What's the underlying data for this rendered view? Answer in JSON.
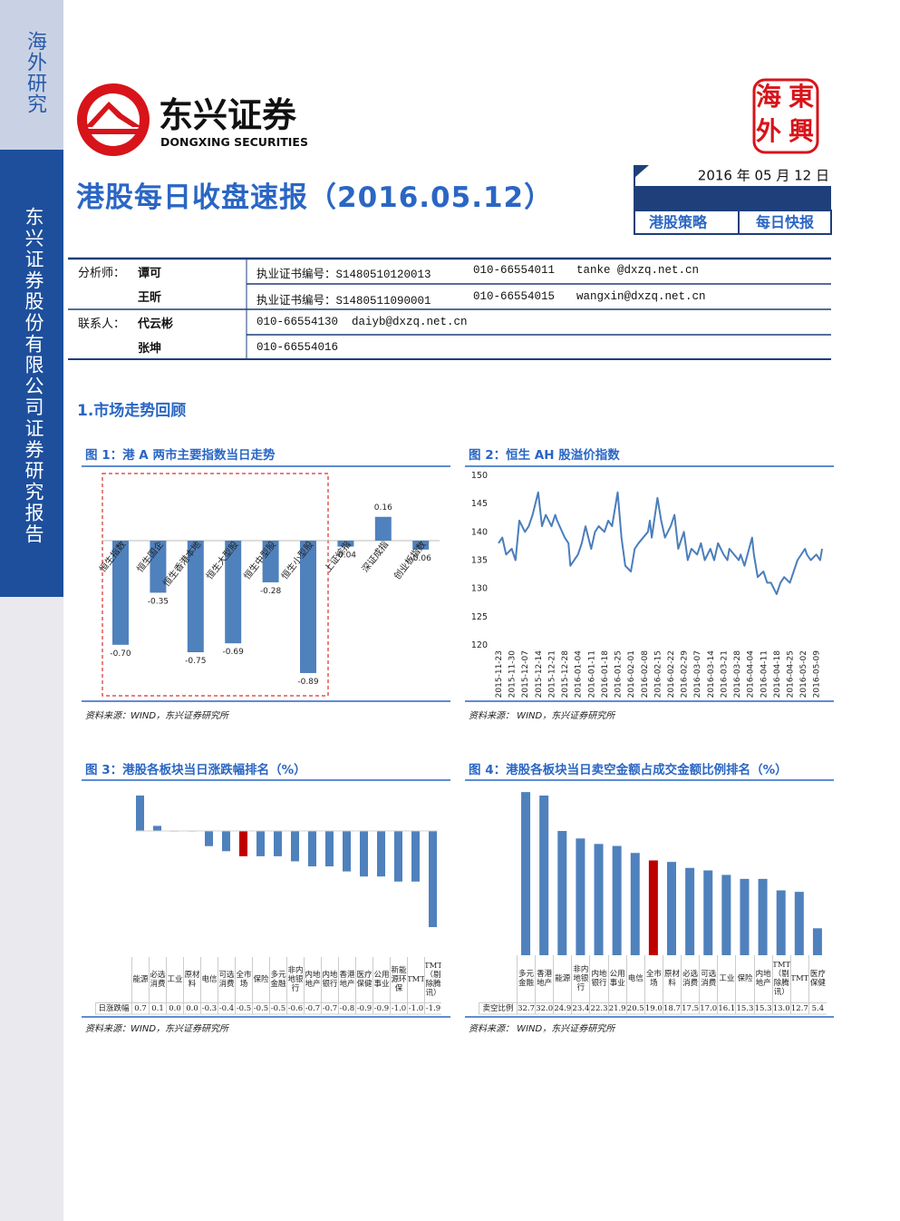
{
  "sidebar": {
    "tag": "海外研究",
    "company": "东兴证券股份有限公司证券研究报告"
  },
  "header": {
    "logo_cn": "东兴证券",
    "logo_en": "DONGXING SECURITIES",
    "stamp": [
      "海",
      "東",
      "外",
      "興"
    ],
    "title": "港股每日收盘速报（2016.05.12）",
    "date": "2016 年 05 月 12 日",
    "tags": [
      "港股策略",
      "每日快报"
    ]
  },
  "contacts": {
    "groups": [
      {
        "label": "分析师：",
        "people": [
          {
            "name": "谭可",
            "license": "执业证书编号：S1480510120013",
            "phone": "010-66554011",
            "email": "tanke @dxzq.net.cn"
          },
          {
            "name": "王昕",
            "license": "执业证书编号：S1480511090001",
            "phone": "010-66554015",
            "email": "wangxin@dxzq.net.cn"
          }
        ]
      },
      {
        "label": "联系人：",
        "people": [
          {
            "name": "代云彬",
            "phone": "010-66554130",
            "email": "daiyb@dxzq.net.cn"
          },
          {
            "name": "张坤",
            "phone": "010-66554016"
          }
        ]
      }
    ]
  },
  "section": "1.市场走势回顾",
  "chart_data": [
    {
      "type": "bar",
      "title": "图 1：港 A 两市主要指数当日走势",
      "categories": [
        "恒生指数",
        "恒生国企",
        "恒生香港本地",
        "恒生大型股",
        "恒生中型股",
        "恒生小型股",
        "上证综指",
        "深证成指",
        "创业板指数"
      ],
      "values": [
        -0.7,
        -0.35,
        -0.75,
        -0.69,
        -0.28,
        -0.89,
        -0.04,
        0.16,
        -0.06
      ],
      "value_labels": [
        "-0.70",
        "-0.35",
        "-0.75",
        "-0.69",
        "-0.28",
        "-0.89",
        "-0.04",
        "0.16",
        "-0.06"
      ],
      "color": "#4f81bd",
      "source": "资料来源：WIND，东兴证券研究所"
    },
    {
      "type": "line",
      "title": "图 2：恒生 AH 股溢价指数",
      "x": [
        "2015-11-23",
        "2015-11-25",
        "2015-11-27",
        "2015-11-30",
        "2015-12-02",
        "2015-12-04",
        "2015-12-07",
        "2015-12-09",
        "2015-12-11",
        "2015-12-14",
        "2015-12-16",
        "2015-12-18",
        "2015-12-21",
        "2015-12-23",
        "2015-12-24",
        "2015-12-28",
        "2015-12-30",
        "2015-12-31",
        "2016-01-04",
        "2016-01-06",
        "2016-01-08",
        "2016-01-11",
        "2016-01-13",
        "2016-01-15",
        "2016-01-18",
        "2016-01-20",
        "2016-01-22",
        "2016-01-25",
        "2016-01-27",
        "2016-01-29",
        "2016-02-01",
        "2016-02-03",
        "2016-02-05",
        "2016-02-10",
        "2016-02-11",
        "2016-02-12",
        "2016-02-15",
        "2016-02-17",
        "2016-02-19",
        "2016-02-22",
        "2016-02-24",
        "2016-02-26",
        "2016-02-29",
        "2016-03-02",
        "2016-03-04",
        "2016-03-07",
        "2016-03-09",
        "2016-03-11",
        "2016-03-14",
        "2016-03-16",
        "2016-03-18",
        "2016-03-21",
        "2016-03-23",
        "2016-03-24",
        "2016-03-29",
        "2016-03-30",
        "2016-04-01",
        "2016-04-05",
        "2016-04-06",
        "2016-04-08",
        "2016-04-11",
        "2016-04-13",
        "2016-04-15",
        "2016-04-18",
        "2016-04-20",
        "2016-04-22",
        "2016-04-25",
        "2016-04-27",
        "2016-04-29",
        "2016-05-03",
        "2016-05-04",
        "2016-05-06",
        "2016-05-09",
        "2016-05-11",
        "2016-05-12"
      ],
      "values": [
        138,
        139,
        136,
        137,
        135,
        142,
        140,
        141,
        143,
        147,
        141,
        143,
        141,
        143,
        142,
        139,
        138,
        134,
        136,
        138,
        141,
        137,
        140,
        141,
        140,
        142,
        141,
        147,
        139,
        134,
        133,
        137,
        138,
        140,
        142,
        139,
        146,
        142,
        139,
        141,
        143,
        137,
        140,
        135,
        137,
        136,
        138,
        135,
        137,
        135,
        138,
        136,
        135,
        137,
        135,
        136,
        134,
        139,
        136,
        132,
        133,
        131,
        131,
        129,
        131,
        132,
        131,
        133,
        135,
        137,
        136,
        135,
        136,
        135,
        137
      ],
      "color": "#4a7ebb",
      "xlim": [
        "2015-11-23",
        "2016-05-12"
      ],
      "xticks": [
        "2015-11-23",
        "2015-11-30",
        "2015-12-07",
        "2015-12-14",
        "2015-12-21",
        "2015-12-28",
        "2016-01-04",
        "2016-01-11",
        "2016-01-18",
        "2016-01-25",
        "2016-02-01",
        "2016-02-08",
        "2016-02-15",
        "2016-02-22",
        "2016-02-29",
        "2016-03-07",
        "2016-03-14",
        "2016-03-21",
        "2016-03-28",
        "2016-04-04",
        "2016-04-11",
        "2016-04-18",
        "2016-04-25",
        "2016-05-02",
        "2016-05-09"
      ],
      "ylim": [
        120,
        150
      ],
      "yticks": [
        120,
        125,
        130,
        135,
        140,
        145,
        150
      ],
      "source": "资料来源：  WIND，东兴证券研究所"
    },
    {
      "type": "bar",
      "title": "图 3：港股各板块当日涨跌幅排名（%）",
      "categories": [
        "能源",
        "必选消费",
        "工业",
        "原材料",
        "电信",
        "可选消费",
        "全市场",
        "保险",
        "多元金融",
        "非内地银行",
        "内地地产",
        "内地银行",
        "香港地产",
        "医疗保健",
        "公用事业",
        "新能源环保",
        "TMT",
        "TMT（剔除腾讯）"
      ],
      "values": [
        0.7,
        0.1,
        0.0,
        0.0,
        -0.3,
        -0.4,
        -0.5,
        -0.5,
        -0.5,
        -0.6,
        -0.7,
        -0.7,
        -0.8,
        -0.9,
        -0.9,
        -1.0,
        -1.0,
        -1.9
      ],
      "value_labels": [
        "0.7",
        "0.1",
        "0.0",
        "0.0",
        "-0.3",
        "-0.4",
        "-0.5",
        "-0.5",
        "-0.5",
        "-0.6",
        "-0.7",
        "-0.7",
        "-0.8",
        "-0.9",
        "-0.9",
        "-1.0",
        "-1.0",
        "-1.9"
      ],
      "colors": [
        "#4f81bd",
        "#4f81bd",
        "#4f81bd",
        "#4f81bd",
        "#4f81bd",
        "#4f81bd",
        "#c00000",
        "#4f81bd",
        "#4f81bd",
        "#4f81bd",
        "#4f81bd",
        "#4f81bd",
        "#4f81bd",
        "#4f81bd",
        "#4f81bd",
        "#4f81bd",
        "#4f81bd",
        "#4f81bd"
      ],
      "table_row_label": "日涨跌幅",
      "source": "资料来源：WIND，东兴证券研究所"
    },
    {
      "type": "bar",
      "title": "图 4：港股各板块当日卖空金额占成交金额比例排名（%）",
      "categories": [
        "多元金融",
        "香港地产",
        "能源",
        "非内地银行",
        "内地银行",
        "公用事业",
        "电信",
        "全市场",
        "原材料",
        "必选消费",
        "可选消费",
        "工业",
        "保险",
        "内地地产",
        "TMT（剔除腾讯）",
        "TMT",
        "医疗保健"
      ],
      "values": [
        32.7,
        32.0,
        24.9,
        23.4,
        22.3,
        21.9,
        20.5,
        19.0,
        18.7,
        17.5,
        17.0,
        16.1,
        15.3,
        15.3,
        13.0,
        12.7,
        5.4
      ],
      "value_labels": [
        "32.7",
        "32.0",
        "24.9",
        "23.4",
        "22.3",
        "21.9",
        "20.5",
        "19.0",
        "18.7",
        "17.5",
        "17.0",
        "16.1",
        "15.3",
        "15.3",
        "13.0",
        "12.7",
        "5.4"
      ],
      "colors": [
        "#4f81bd",
        "#4f81bd",
        "#4f81bd",
        "#4f81bd",
        "#4f81bd",
        "#4f81bd",
        "#4f81bd",
        "#c00000",
        "#4f81bd",
        "#4f81bd",
        "#4f81bd",
        "#4f81bd",
        "#4f81bd",
        "#4f81bd",
        "#4f81bd",
        "#4f81bd",
        "#4f81bd"
      ],
      "table_row_label": "卖空比例",
      "source": "资料来源：  WIND，东兴证券研究所"
    }
  ]
}
